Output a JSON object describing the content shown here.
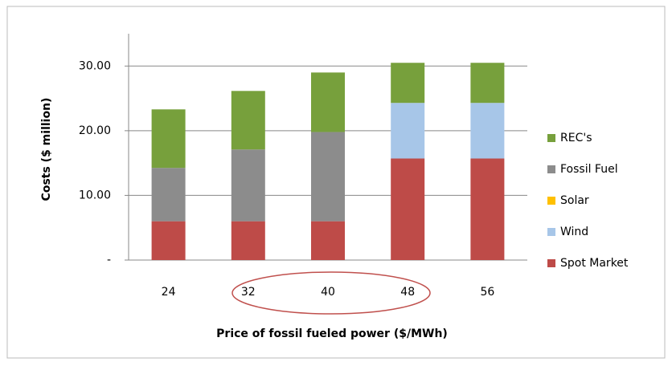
{
  "chart_data": {
    "type": "stacked_bar",
    "y_label": "Costs ($ million)",
    "x_label": "Price of fossil fueled power ($/MWh)",
    "categories": [
      "24",
      "32",
      "40",
      "48",
      "56"
    ],
    "series": [
      {
        "name": "Spot Market",
        "color": "#be4b48",
        "values": [
          6.0,
          6.0,
          6.0,
          15.7,
          15.7
        ]
      },
      {
        "name": "Wind",
        "color": "#a7c6e8",
        "values": [
          0,
          0,
          0,
          8.6,
          8.6
        ]
      },
      {
        "name": "Solar",
        "color": "#ffc000",
        "values": [
          0,
          0,
          0,
          0,
          0
        ]
      },
      {
        "name": "Fossil Fuel",
        "color": "#8c8c8c",
        "values": [
          8.25,
          11.1,
          13.8,
          0,
          0
        ]
      },
      {
        "name": "REC's",
        "color": "#77a03c",
        "values": [
          9.05,
          9.05,
          9.2,
          6.2,
          6.2
        ]
      }
    ],
    "ylim": [
      0,
      35
    ],
    "yticks": [
      {
        "value": 0,
        "label": "-"
      },
      {
        "value": 10,
        "label": "10.00"
      },
      {
        "value": 20,
        "label": "20.00"
      },
      {
        "value": 30,
        "label": "30.00"
      }
    ],
    "grid": true
  }
}
